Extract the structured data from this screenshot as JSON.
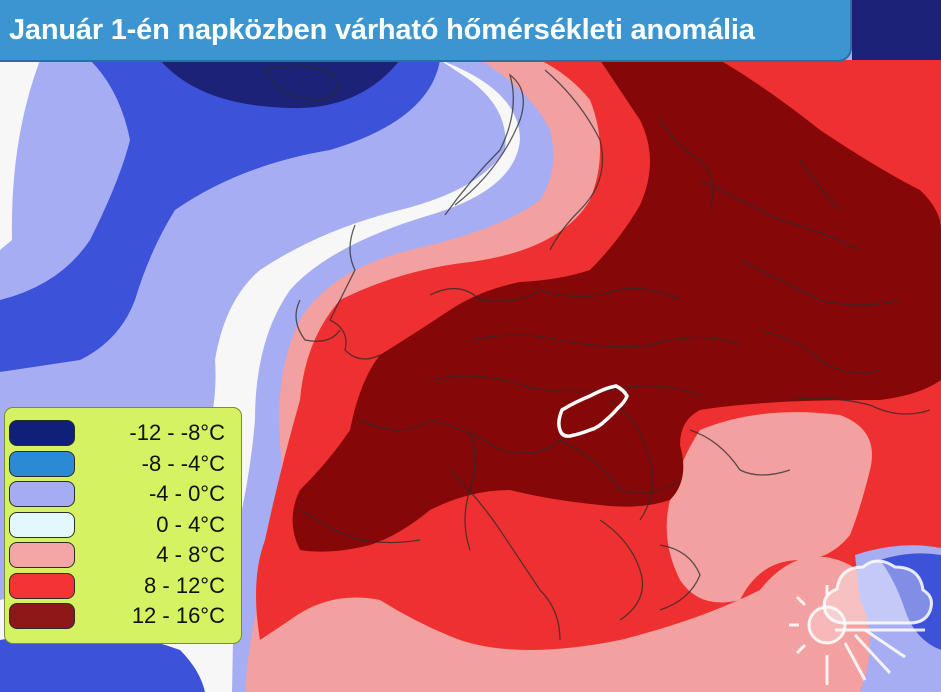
{
  "title": "Január 1-én napközben várható hőmérsékleti anomália",
  "legend": {
    "items": [
      {
        "label": "-12 - -8°C",
        "color": "#0f1f7a"
      },
      {
        "label": "-8 - -4°C",
        "color": "#2a8ad6"
      },
      {
        "label": "-4 - 0°C",
        "color": "#a6acf4"
      },
      {
        "label": "0 - 4°C",
        "color": "#e2f8fc"
      },
      {
        "label": "4 - 8°C",
        "color": "#f4a6a6"
      },
      {
        "label": "8 - 12°C",
        "color": "#f43434"
      },
      {
        "label": "12 - 16°C",
        "color": "#8e1818"
      }
    ]
  },
  "map": {
    "highlighted_country": "Hungary",
    "band_colors": {
      "navy": "#1c2278",
      "blue": "#3c52d8",
      "lavender": "#a7adf3",
      "white": "#f7f7f7",
      "pink": "#f3a0a0",
      "red": "#ef3030",
      "maroon": "#860707"
    }
  },
  "logo": {
    "icon": "sun-cloud-icon"
  }
}
